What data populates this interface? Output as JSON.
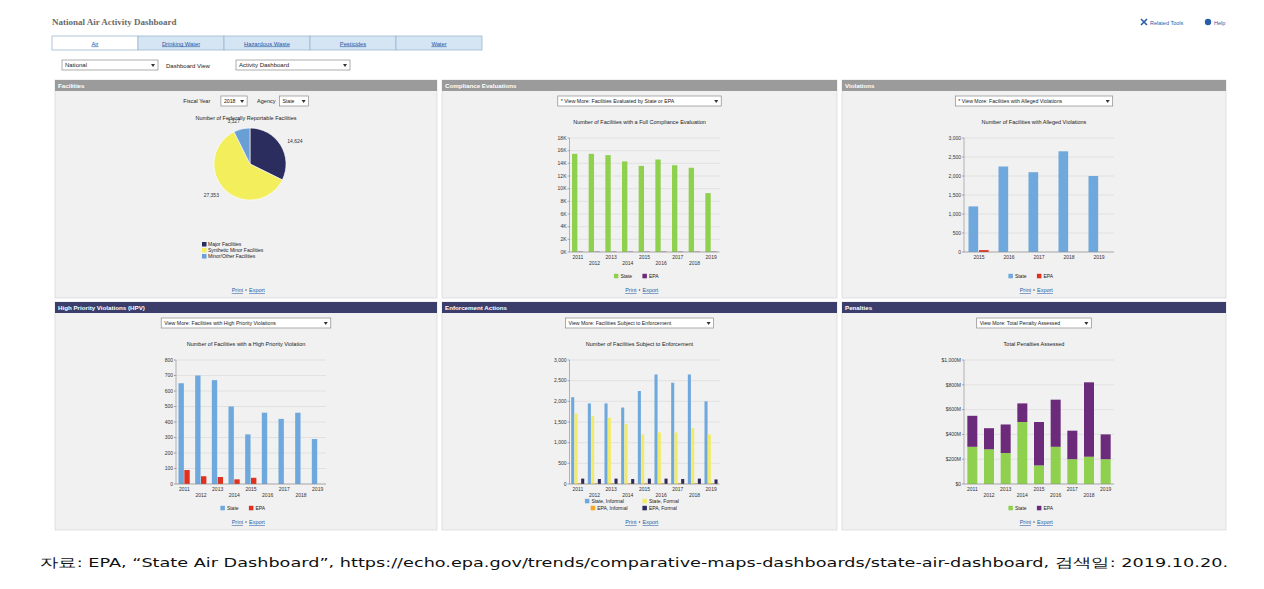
{
  "page": {
    "title": "National Air Activity Dashboard",
    "tools": [
      "Related Tools",
      "Help"
    ],
    "tabs": [
      "Air",
      "Drinking Water",
      "Hazardous Waste",
      "Pesticides",
      "Water"
    ],
    "scope": "National",
    "view_label": "Dashboard View",
    "view": "Activity Dashboard",
    "links": [
      "Print",
      "Export"
    ],
    "caption": "자료: EPA, “State Air Dashboard”, https://echo.epa.gov/trends/comparative-maps-dashboards/state-air-dashboard, 검색일: 2019.10.20."
  },
  "panels": [
    {
      "header": "Facilities",
      "controls": [
        {
          "label": "Fiscal Year",
          "value": "2018"
        },
        {
          "label": "Agency",
          "value": "State"
        }
      ]
    },
    {
      "header": "Compliance Evaluations",
      "controls": [
        {
          "value": "* View More: Facilities Evaluated by State or EPA"
        }
      ]
    },
    {
      "header": "Violations",
      "controls": [
        {
          "value": "* View More: Facilities with Alleged Violations"
        }
      ]
    },
    {
      "header": "High Priority Violations (HPV)",
      "controls": [
        {
          "value": "View More: Facilities with High Priority Violations"
        }
      ]
    },
    {
      "header": "Enforcement Actions",
      "controls": [
        {
          "value": "View More: Facilities Subject to Enforcement"
        }
      ]
    },
    {
      "header": "Penalties",
      "controls": [
        {
          "value": "View More: Total Penalty Assessed"
        }
      ]
    }
  ],
  "chart_data": [
    {
      "type": "pie",
      "title": "Number of Federally Reportable Facilities",
      "categories": [
        "Major Facilities",
        "Synthetic Minor Facilities",
        "Minor/Other Facilities"
      ],
      "values": [
        14624,
        27353,
        3327
      ],
      "value_labels": [
        "14,624",
        "27,353",
        "3,327"
      ],
      "colors": [
        "#2b2d5e",
        "#f2ee5c",
        "#6a9fd6"
      ],
      "data_labels": true,
      "legend": "bottom"
    },
    {
      "type": "bar",
      "title": "Number of Facilities with a Full Compliance Evaluation",
      "categories": [
        "2011",
        "2012",
        "2013",
        "2014",
        "2015",
        "2016",
        "2017",
        "2018",
        "2019"
      ],
      "series": [
        {
          "name": "State",
          "color": "#8fd14f",
          "values": [
            15500,
            15500,
            15300,
            14300,
            13600,
            14600,
            13700,
            13300,
            9300
          ]
        },
        {
          "name": "EPA",
          "color": "#6b2a7a",
          "values": [
            50,
            50,
            50,
            50,
            50,
            50,
            50,
            50,
            50
          ]
        }
      ],
      "ylim": [
        0,
        18000
      ],
      "yticks": [
        {
          "value": 0,
          "label": "0K"
        },
        {
          "value": 2000,
          "label": "2K"
        },
        {
          "value": 4000,
          "label": "4K"
        },
        {
          "value": 6000,
          "label": "6K"
        },
        {
          "value": 8000,
          "label": "8K"
        },
        {
          "value": 10000,
          "label": "10K"
        },
        {
          "value": 12000,
          "label": "12K"
        },
        {
          "value": 14000,
          "label": "14K"
        },
        {
          "value": 16000,
          "label": "16K"
        },
        {
          "value": 18000,
          "label": "18K"
        }
      ],
      "grid": true,
      "legend": "bottom"
    },
    {
      "type": "bar",
      "title": "Number of Facilities with Alleged Violations",
      "categories": [
        "2015",
        "2016",
        "2017",
        "2018",
        "2019"
      ],
      "series": [
        {
          "name": "State",
          "color": "#6fa8dc",
          "values": [
            1200,
            2250,
            2100,
            2650,
            2000
          ]
        },
        {
          "name": "EPA",
          "color": "#e0301e",
          "values": [
            50,
            0,
            0,
            0,
            0
          ]
        }
      ],
      "ylim": [
        0,
        3000
      ],
      "yticks": [
        0,
        500,
        {
          "value": 1000,
          "label": "1,000"
        },
        {
          "value": 1500,
          "label": "1,500"
        },
        {
          "value": 2000,
          "label": "2,000"
        },
        {
          "value": 2500,
          "label": "2,500"
        },
        {
          "value": 3000,
          "label": "3,000"
        }
      ],
      "grid": true,
      "legend": "bottom"
    },
    {
      "type": "bar",
      "title": "Number of Facilities with a High Priority Violation",
      "categories": [
        "2011",
        "2012",
        "2013",
        "2014",
        "2015",
        "2016",
        "2017",
        "2018",
        "2019"
      ],
      "series": [
        {
          "name": "State",
          "color": "#6fa8dc",
          "values": [
            650,
            700,
            670,
            500,
            320,
            460,
            420,
            460,
            290
          ]
        },
        {
          "name": "EPA",
          "color": "#e0301e",
          "values": [
            90,
            50,
            45,
            30,
            40,
            0,
            0,
            0,
            0
          ]
        }
      ],
      "ylim": [
        0,
        800
      ],
      "yticks": [
        0,
        100,
        200,
        300,
        400,
        500,
        600,
        700,
        800
      ],
      "grid": true,
      "legend": "bottom"
    },
    {
      "type": "bar",
      "title": "Number of Facilities Subject to Enforcement",
      "categories": [
        "2011",
        "2012",
        "2013",
        "2014",
        "2015",
        "2016",
        "2017",
        "2018",
        "2019"
      ],
      "series": [
        {
          "name": "State, Informal",
          "color": "#6fa8dc",
          "values": [
            2100,
            1950,
            1950,
            1850,
            2250,
            2650,
            2450,
            2650,
            2000
          ]
        },
        {
          "name": "State, Formal",
          "color": "#f2ea6a",
          "values": [
            1700,
            1650,
            1600,
            1450,
            1200,
            1250,
            1250,
            1350,
            1200
          ]
        },
        {
          "name": "EPA, Informal",
          "color": "#f5a623",
          "values": [
            20,
            20,
            20,
            20,
            20,
            20,
            20,
            20,
            20
          ]
        },
        {
          "name": "EPA, Formal",
          "color": "#2e2a5b",
          "values": [
            130,
            120,
            130,
            120,
            130,
            130,
            120,
            130,
            110
          ]
        }
      ],
      "ylim": [
        0,
        3000
      ],
      "yticks": [
        0,
        500,
        {
          "value": 1000,
          "label": "1,000"
        },
        {
          "value": 1500,
          "label": "1,500"
        },
        {
          "value": 2000,
          "label": "2,000"
        },
        {
          "value": 2500,
          "label": "2,500"
        },
        {
          "value": 3000,
          "label": "3,000"
        }
      ],
      "grid": true,
      "legend": "bottom"
    },
    {
      "type": "bar",
      "title": "Total Penalties Assessed",
      "stacked": true,
      "categories": [
        "2011",
        "2012",
        "2013",
        "2014",
        "2015",
        "2016",
        "2017",
        "2018",
        "2019"
      ],
      "series": [
        {
          "name": "State",
          "color": "#8fd14f",
          "values": [
            300,
            280,
            250,
            500,
            150,
            300,
            200,
            220,
            200
          ]
        },
        {
          "name": "EPA",
          "color": "#6b2a7a",
          "values": [
            250,
            170,
            230,
            150,
            350,
            380,
            230,
            600,
            200
          ]
        }
      ],
      "ylim": [
        0,
        1000
      ],
      "yticks": [
        {
          "value": 0,
          "label": "$0"
        },
        {
          "value": 200,
          "label": "$200M"
        },
        {
          "value": 400,
          "label": "$400M"
        },
        {
          "value": 600,
          "label": "$600M"
        },
        {
          "value": 800,
          "label": "$800M"
        },
        {
          "value": 1000,
          "label": "$1,000M"
        }
      ],
      "grid": true,
      "legend": "bottom"
    }
  ]
}
